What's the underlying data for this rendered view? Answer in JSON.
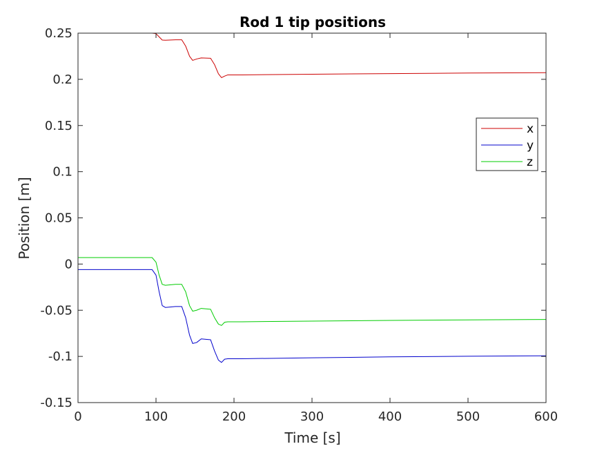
{
  "chart_data": {
    "type": "line",
    "title": "Rod 1 tip positions",
    "xlabel": "Time [s]",
    "ylabel": "Position [m]",
    "xlim": [
      0,
      600
    ],
    "ylim": [
      -0.15,
      0.25
    ],
    "x_ticks": [
      0,
      100,
      200,
      300,
      400,
      500,
      600
    ],
    "x_tick_labels": [
      "0",
      "100",
      "200",
      "300",
      "400",
      "500",
      "600"
    ],
    "y_ticks": [
      -0.15,
      -0.1,
      -0.05,
      0,
      0.05,
      0.1,
      0.15,
      0.2,
      0.25
    ],
    "y_tick_labels": [
      "-0.15",
      "-0.1",
      "-0.05",
      "0",
      "0.05",
      "0.1",
      "0.15",
      "0.2",
      "0.25"
    ],
    "grid": false,
    "legend_position": "top-right",
    "series": [
      {
        "name": "x",
        "color": "#cc0000",
        "points": [
          [
            0,
            0.25
          ],
          [
            95,
            0.25
          ],
          [
            100,
            0.2495
          ],
          [
            104,
            0.246
          ],
          [
            108,
            0.2425
          ],
          [
            112,
            0.2423
          ],
          [
            125,
            0.2428
          ],
          [
            133,
            0.2428
          ],
          [
            138,
            0.236
          ],
          [
            143,
            0.225
          ],
          [
            147,
            0.2205
          ],
          [
            152,
            0.222
          ],
          [
            158,
            0.2232
          ],
          [
            170,
            0.2228
          ],
          [
            175,
            0.216
          ],
          [
            180,
            0.206
          ],
          [
            184,
            0.2018
          ],
          [
            188,
            0.2035
          ],
          [
            192,
            0.2048
          ],
          [
            210,
            0.2048
          ],
          [
            300,
            0.2055
          ],
          [
            400,
            0.2062
          ],
          [
            500,
            0.2068
          ],
          [
            600,
            0.2072
          ]
        ]
      },
      {
        "name": "y",
        "color": "#0000cc",
        "points": [
          [
            0,
            -0.006
          ],
          [
            95,
            -0.006
          ],
          [
            100,
            -0.012
          ],
          [
            104,
            -0.03
          ],
          [
            108,
            -0.045
          ],
          [
            112,
            -0.047
          ],
          [
            125,
            -0.046
          ],
          [
            133,
            -0.046
          ],
          [
            138,
            -0.058
          ],
          [
            143,
            -0.077
          ],
          [
            147,
            -0.086
          ],
          [
            152,
            -0.085
          ],
          [
            158,
            -0.081
          ],
          [
            170,
            -0.082
          ],
          [
            175,
            -0.094
          ],
          [
            180,
            -0.104
          ],
          [
            184,
            -0.1065
          ],
          [
            188,
            -0.103
          ],
          [
            192,
            -0.1025
          ],
          [
            210,
            -0.1025
          ],
          [
            300,
            -0.1015
          ],
          [
            400,
            -0.1005
          ],
          [
            500,
            -0.0998
          ],
          [
            600,
            -0.0993
          ]
        ]
      },
      {
        "name": "z",
        "color": "#00cc00",
        "points": [
          [
            0,
            0.007
          ],
          [
            95,
            0.007
          ],
          [
            100,
            0.002
          ],
          [
            104,
            -0.012
          ],
          [
            108,
            -0.022
          ],
          [
            112,
            -0.023
          ],
          [
            125,
            -0.022
          ],
          [
            133,
            -0.022
          ],
          [
            138,
            -0.03
          ],
          [
            143,
            -0.045
          ],
          [
            147,
            -0.051
          ],
          [
            152,
            -0.05
          ],
          [
            158,
            -0.048
          ],
          [
            170,
            -0.049
          ],
          [
            175,
            -0.058
          ],
          [
            180,
            -0.065
          ],
          [
            184,
            -0.0665
          ],
          [
            188,
            -0.063
          ],
          [
            192,
            -0.0625
          ],
          [
            210,
            -0.0625
          ],
          [
            300,
            -0.0618
          ],
          [
            400,
            -0.061
          ],
          [
            500,
            -0.0605
          ],
          [
            600,
            -0.06
          ]
        ]
      }
    ]
  }
}
